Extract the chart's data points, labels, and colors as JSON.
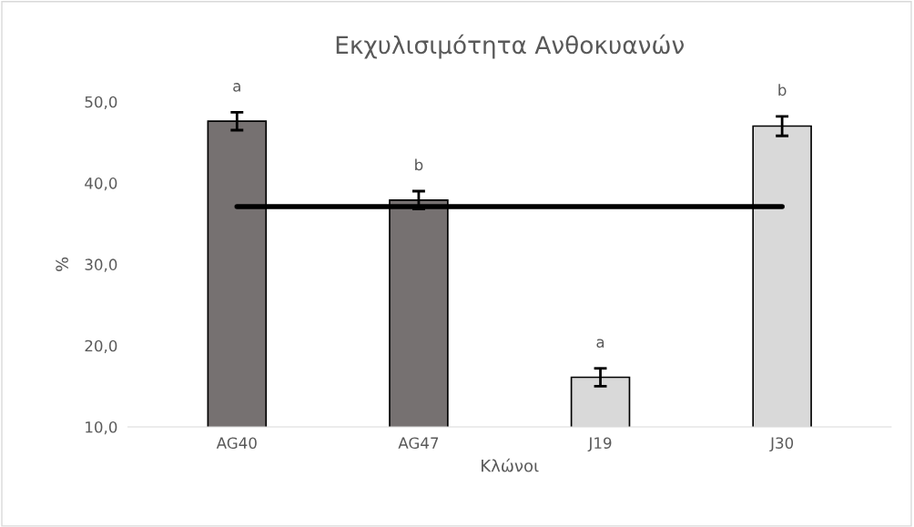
{
  "chart_data": {
    "type": "bar",
    "title": "Εκχυλισιμότητα Ανθοκυανών",
    "xlabel": "Κλώνοι",
    "ylabel": "%",
    "categories": [
      "AG40",
      "AG47",
      "J19",
      "J30"
    ],
    "series": [
      {
        "colors": [
          "#767171",
          "#767171",
          "#d9d9d9",
          "#d9d9d9"
        ],
        "values": [
          47.6,
          37.9,
          16.1,
          47.0
        ],
        "errors": [
          1.1,
          1.1,
          1.1,
          1.2
        ],
        "value_labels": [
          "a",
          "b",
          "a",
          "b"
        ]
      },
      {
        "type": "line",
        "color": "#000000",
        "values": [
          37.1,
          37.1,
          37.1,
          37.1
        ]
      }
    ],
    "ylim": [
      10,
      50
    ],
    "yticks": [
      {
        "value": 10,
        "label": "10,0"
      },
      {
        "value": 20,
        "label": "20,0"
      },
      {
        "value": 30,
        "label": "30,0"
      },
      {
        "value": 40,
        "label": "40,0"
      },
      {
        "value": 50,
        "label": "50,0"
      }
    ],
    "legend": false
  }
}
